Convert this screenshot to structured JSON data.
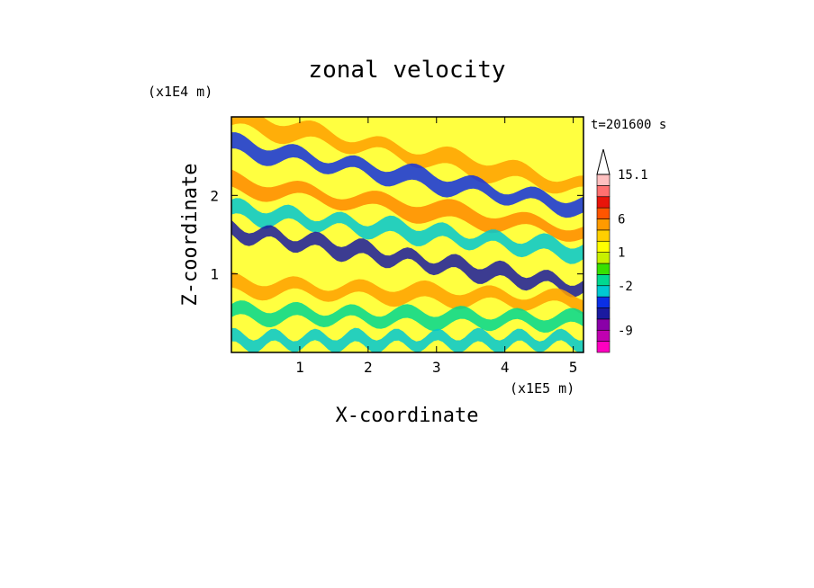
{
  "chart_data": {
    "type": "heatmap",
    "title": "zonal velocity",
    "xlabel": "X-coordinate",
    "ylabel": "Z-coordinate",
    "x_unit": "(x1E5 m)",
    "y_unit": "(x1E4 m)",
    "time_label": "t=201600 s",
    "xlim": [
      0,
      5.15
    ],
    "ylim": [
      0,
      3.0
    ],
    "x_ticks": [
      1,
      2,
      3,
      4,
      5
    ],
    "y_ticks": [
      1,
      2
    ],
    "colorbar": {
      "bins": [
        {
          "color": "#ff00c0",
          "label": ""
        },
        {
          "color": "#c000b0",
          "label": "-9"
        },
        {
          "color": "#8a00a8",
          "label": ""
        },
        {
          "color": "#1a1aa0",
          "label": ""
        },
        {
          "color": "#0a2fe6",
          "label": ""
        },
        {
          "color": "#00c8d2",
          "label": "-2"
        },
        {
          "color": "#00d890",
          "label": ""
        },
        {
          "color": "#37e000",
          "label": ""
        },
        {
          "color": "#c8f000",
          "label": "1"
        },
        {
          "color": "#ffff00",
          "label": ""
        },
        {
          "color": "#ffd000",
          "label": ""
        },
        {
          "color": "#ff9a00",
          "label": "6"
        },
        {
          "color": "#ff5500",
          "label": ""
        },
        {
          "color": "#e8140a",
          "label": ""
        },
        {
          "color": "#ff7070",
          "label": ""
        },
        {
          "color": "#ffc0c0",
          "label": "15.1"
        }
      ],
      "extend_max": true
    },
    "background_value_color": "#ffff40",
    "bands": [
      {
        "color": "#ffa000",
        "amp": 0.45,
        "slope": 0.42,
        "k": 2.1,
        "phase": 0.3,
        "base": 2.55
      },
      {
        "color": "#1030e0",
        "amp": 0.35,
        "slope": 0.38,
        "k": 2.4,
        "phase": 1.1,
        "base": 2.25
      },
      {
        "color": "#ff8a00",
        "amp": 0.4,
        "slope": 0.3,
        "k": 1.9,
        "phase": 2.0,
        "base": 1.85
      },
      {
        "color": "#00c8d2",
        "amp": 0.3,
        "slope": 0.25,
        "k": 2.8,
        "phase": 0.7,
        "base": 1.55
      },
      {
        "color": "#1a1aa0",
        "amp": 0.25,
        "slope": 0.35,
        "k": 3.1,
        "phase": 2.5,
        "base": 1.2
      },
      {
        "color": "#ffa000",
        "amp": 0.3,
        "slope": 0.1,
        "k": 2.2,
        "phase": 1.7,
        "base": 0.75
      },
      {
        "color": "#00d890",
        "amp": 0.2,
        "slope": 0.05,
        "k": 2.6,
        "phase": 0.4,
        "base": 0.45
      },
      {
        "color": "#00c8d2",
        "amp": 0.15,
        "slope": 0.0,
        "k": 3.5,
        "phase": 1.3,
        "base": 0.15
      }
    ]
  }
}
